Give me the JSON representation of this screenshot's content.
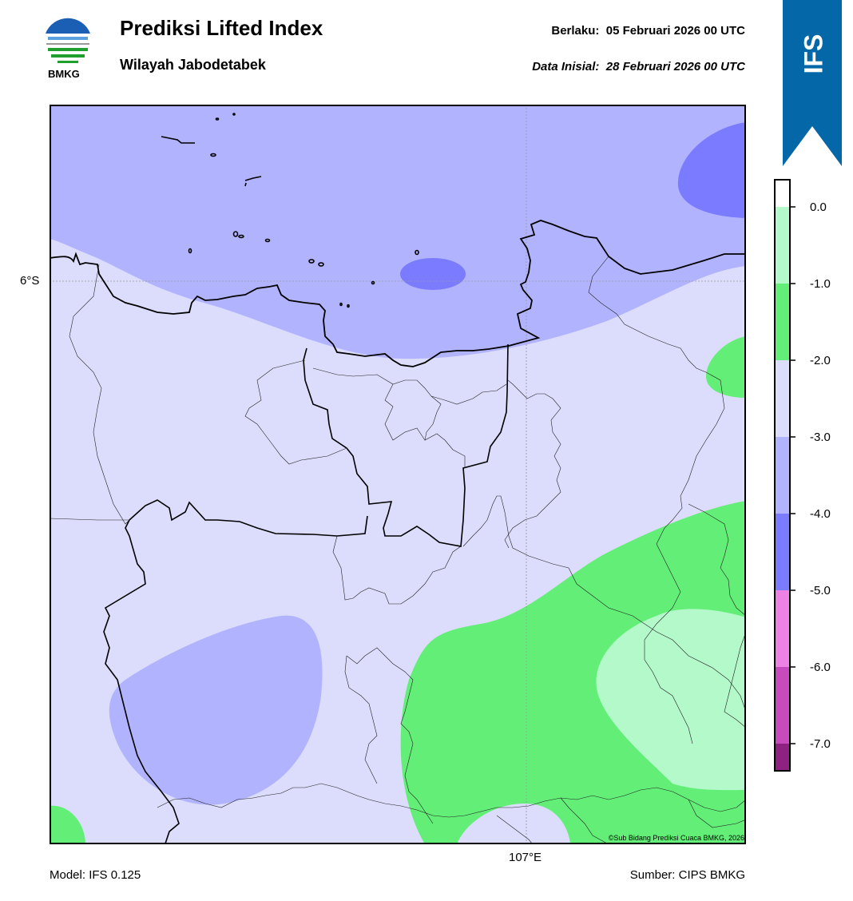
{
  "header": {
    "title": "Prediksi Lifted Index",
    "subtitle": "Wilayah Jabodetabek",
    "valid_label": "Berlaku:",
    "valid_value": "05 Februari 2026 00 UTC",
    "init_label": "Data Inisial:",
    "init_value": "28 Februari 2026 00 UTC"
  },
  "logo": {
    "text": "BMKG",
    "icon": "bmkg-logo"
  },
  "badge": {
    "text": "IFS",
    "color": "#0468a8"
  },
  "map": {
    "lat_label": "6°S",
    "lon_label": "107°E",
    "copyright": "©Sub Bidang Prediksi Cuaca BMKG, 2026"
  },
  "colorbar": {
    "ticks": [
      "0.0",
      "-1.0",
      "-2.0",
      "-3.0",
      "-4.0",
      "-5.0",
      "-6.0",
      "-7.0"
    ],
    "bins": [
      {
        "range": "> 0",
        "color": "#ffffff"
      },
      {
        "range": "0 to -1",
        "color": "#b3f9ca"
      },
      {
        "range": "-1 to -2",
        "color": "#63ef77"
      },
      {
        "range": "-2 to -3",
        "color": "#dcdcfc"
      },
      {
        "range": "-3 to -4",
        "color": "#b2b3fe"
      },
      {
        "range": "-4 to -5",
        "color": "#7a7bff"
      },
      {
        "range": "-5 to -6",
        "color": "#ee81e4"
      },
      {
        "range": "-6 to -7",
        "color": "#c84bbd"
      },
      {
        "range": "< -7",
        "color": "#8f2181"
      }
    ]
  },
  "footer": {
    "model": "Model: IFS 0.125",
    "source": "Sumber: CIPS BMKG"
  }
}
